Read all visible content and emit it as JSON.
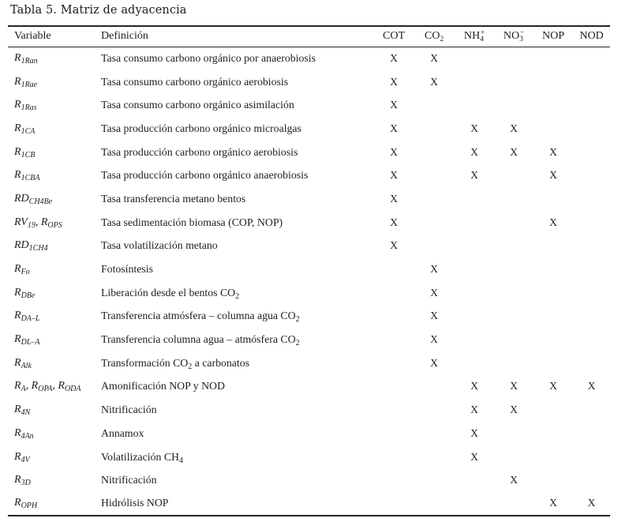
{
  "title": "Tabla 5. Matriz de adyacencia",
  "mark_glyph": "X",
  "colors": {
    "text": "#1e1e1e",
    "rule": "#262626",
    "background": "#ffffff"
  },
  "columns": [
    {
      "id": "variable",
      "label": [
        {
          "t": "Variable"
        }
      ]
    },
    {
      "id": "definicion",
      "label": [
        {
          "t": "Definición"
        }
      ]
    },
    {
      "id": "cot",
      "label": [
        {
          "t": "COT"
        }
      ]
    },
    {
      "id": "co2",
      "label": [
        {
          "t": "CO"
        },
        {
          "t": "2",
          "k": "sub"
        }
      ]
    },
    {
      "id": "nh4",
      "label": [
        {
          "t": "NH"
        },
        {
          "t": "4",
          "k": "sub"
        },
        {
          "t": "+",
          "k": "sup"
        }
      ]
    },
    {
      "id": "no3",
      "label": [
        {
          "t": "NO"
        },
        {
          "t": "3",
          "k": "sub"
        },
        {
          "t": "−",
          "k": "sup"
        }
      ]
    },
    {
      "id": "nop",
      "label": [
        {
          "t": "NOP"
        }
      ]
    },
    {
      "id": "nod",
      "label": [
        {
          "t": "NOD"
        }
      ]
    }
  ],
  "rows": [
    {
      "variable": [
        {
          "t": "R"
        },
        {
          "t": "1Ran",
          "k": "sub"
        }
      ],
      "definition": [
        {
          "t": "Tasa consumo carbono orgánico por anaerobiosis"
        }
      ],
      "marks": [
        1,
        1,
        0,
        0,
        0,
        0
      ]
    },
    {
      "variable": [
        {
          "t": "R"
        },
        {
          "t": "1Rae",
          "k": "sub"
        }
      ],
      "definition": [
        {
          "t": "Tasa consumo carbono orgánico aerobiosis"
        }
      ],
      "marks": [
        1,
        1,
        0,
        0,
        0,
        0
      ]
    },
    {
      "variable": [
        {
          "t": "R"
        },
        {
          "t": "1Ras",
          "k": "sub"
        }
      ],
      "definition": [
        {
          "t": "Tasa consumo carbono orgánico asimilación"
        }
      ],
      "marks": [
        1,
        0,
        0,
        0,
        0,
        0
      ]
    },
    {
      "variable": [
        {
          "t": "R"
        },
        {
          "t": "1CA",
          "k": "sub"
        }
      ],
      "definition": [
        {
          "t": "Tasa producción carbono orgánico microalgas"
        }
      ],
      "marks": [
        1,
        0,
        1,
        1,
        0,
        0
      ]
    },
    {
      "variable": [
        {
          "t": "R"
        },
        {
          "t": "1CB",
          "k": "sub"
        }
      ],
      "definition": [
        {
          "t": "Tasa producción carbono orgánico aerobiosis"
        }
      ],
      "marks": [
        1,
        0,
        1,
        1,
        1,
        0
      ]
    },
    {
      "variable": [
        {
          "t": "R"
        },
        {
          "t": "1CBA",
          "k": "sub"
        }
      ],
      "definition": [
        {
          "t": "Tasa producción carbono orgánico anaerobiosis"
        }
      ],
      "marks": [
        1,
        0,
        1,
        0,
        1,
        0
      ]
    },
    {
      "variable": [
        {
          "t": "RD"
        },
        {
          "t": "CH4Be",
          "k": "sub"
        }
      ],
      "definition": [
        {
          "t": "Tasa transferencia metano bentos"
        }
      ],
      "marks": [
        1,
        0,
        0,
        0,
        0,
        0
      ]
    },
    {
      "variable": [
        {
          "t": "RV"
        },
        {
          "t": "19",
          "k": "sub"
        },
        {
          "t": ", "
        },
        {
          "t": "R"
        },
        {
          "t": "OPS",
          "k": "sub"
        }
      ],
      "definition": [
        {
          "t": "Tasa sedimentación biomasa (COP, NOP)"
        }
      ],
      "marks": [
        1,
        0,
        0,
        0,
        1,
        0
      ]
    },
    {
      "variable": [
        {
          "t": "RD"
        },
        {
          "t": "1CH4",
          "k": "sub"
        }
      ],
      "definition": [
        {
          "t": "Tasa volatilización metano"
        }
      ],
      "marks": [
        1,
        0,
        0,
        0,
        0,
        0
      ]
    },
    {
      "variable": [
        {
          "t": "R"
        },
        {
          "t": "Fo",
          "k": "sub"
        }
      ],
      "definition": [
        {
          "t": "Fotosíntesis"
        }
      ],
      "marks": [
        0,
        1,
        0,
        0,
        0,
        0
      ]
    },
    {
      "variable": [
        {
          "t": "R"
        },
        {
          "t": "DBe",
          "k": "sub"
        }
      ],
      "definition": [
        {
          "t": "Liberación desde el bentos CO"
        },
        {
          "t": "2",
          "k": "sub"
        }
      ],
      "marks": [
        0,
        1,
        0,
        0,
        0,
        0
      ]
    },
    {
      "variable": [
        {
          "t": "R"
        },
        {
          "t": "DA–L",
          "k": "sub"
        }
      ],
      "definition": [
        {
          "t": "Transferencia atmósfera – columna agua CO"
        },
        {
          "t": "2",
          "k": "sub"
        }
      ],
      "marks": [
        0,
        1,
        0,
        0,
        0,
        0
      ]
    },
    {
      "variable": [
        {
          "t": "R"
        },
        {
          "t": "DL–A",
          "k": "sub"
        }
      ],
      "definition": [
        {
          "t": "Transferencia columna agua – atmósfera CO"
        },
        {
          "t": "2",
          "k": "sub"
        }
      ],
      "marks": [
        0,
        1,
        0,
        0,
        0,
        0
      ]
    },
    {
      "variable": [
        {
          "t": "R"
        },
        {
          "t": "Alk",
          "k": "sub"
        }
      ],
      "definition": [
        {
          "t": "Transformación CO"
        },
        {
          "t": "2",
          "k": "sub"
        },
        {
          "t": " a carbonatos"
        }
      ],
      "marks": [
        0,
        1,
        0,
        0,
        0,
        0
      ]
    },
    {
      "variable": [
        {
          "t": "R"
        },
        {
          "t": "A",
          "k": "sub"
        },
        {
          "t": ", "
        },
        {
          "t": "R"
        },
        {
          "t": "OPA",
          "k": "sub"
        },
        {
          "t": ", "
        },
        {
          "t": "R"
        },
        {
          "t": "ODA",
          "k": "sub"
        }
      ],
      "definition": [
        {
          "t": "Amonificación NOP y NOD"
        }
      ],
      "marks": [
        0,
        0,
        1,
        1,
        1,
        1
      ]
    },
    {
      "variable": [
        {
          "t": "R"
        },
        {
          "t": "4N",
          "k": "sub"
        }
      ],
      "definition": [
        {
          "t": "Nitrificación"
        }
      ],
      "marks": [
        0,
        0,
        1,
        1,
        0,
        0
      ]
    },
    {
      "variable": [
        {
          "t": "R"
        },
        {
          "t": "4An",
          "k": "sub"
        }
      ],
      "definition": [
        {
          "t": "Annamox"
        }
      ],
      "marks": [
        0,
        0,
        1,
        0,
        0,
        0
      ]
    },
    {
      "variable": [
        {
          "t": "R"
        },
        {
          "t": "4V",
          "k": "sub"
        }
      ],
      "definition": [
        {
          "t": "Volatilización CH"
        },
        {
          "t": "4",
          "k": "sub"
        }
      ],
      "marks": [
        0,
        0,
        1,
        0,
        0,
        0
      ]
    },
    {
      "variable": [
        {
          "t": "R"
        },
        {
          "t": "3D",
          "k": "sub"
        }
      ],
      "definition": [
        {
          "t": "Nitrificación"
        }
      ],
      "marks": [
        0,
        0,
        0,
        1,
        0,
        0
      ]
    },
    {
      "variable": [
        {
          "t": "R"
        },
        {
          "t": "OPH",
          "k": "sub"
        }
      ],
      "definition": [
        {
          "t": "Hidrólisis NOP"
        }
      ],
      "marks": [
        0,
        0,
        0,
        0,
        1,
        1
      ]
    }
  ]
}
